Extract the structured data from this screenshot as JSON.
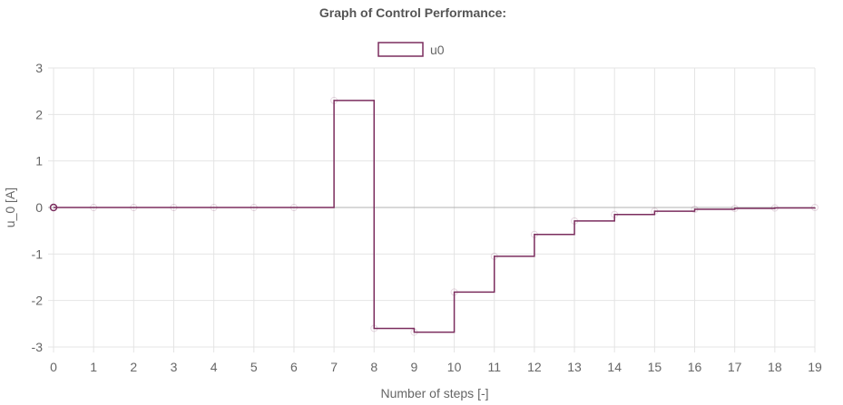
{
  "chart_data": {
    "type": "line",
    "step": true,
    "title": "Graph of Control Performance:",
    "xlabel": "Number of steps [-]",
    "ylabel": "u_0 [A]",
    "xlim": [
      0,
      19
    ],
    "ylim": [
      -3,
      3
    ],
    "x_ticks": [
      "0",
      "1",
      "2",
      "3",
      "4",
      "5",
      "6",
      "7",
      "8",
      "9",
      "10",
      "11",
      "12",
      "13",
      "14",
      "15",
      "16",
      "17",
      "18",
      "19"
    ],
    "y_ticks": [
      "3",
      "2",
      "1",
      "0",
      "-1",
      "-2",
      "-3"
    ],
    "grid": true,
    "legend": "top-center",
    "x": [
      0,
      1,
      2,
      3,
      4,
      5,
      6,
      7,
      8,
      9,
      10,
      11,
      12,
      13,
      14,
      15,
      16,
      17,
      18,
      19
    ],
    "series": [
      {
        "name": "u0",
        "color": "#7b2d5e",
        "values": [
          0,
          0,
          0,
          0,
          0,
          0,
          0,
          2.3,
          -2.6,
          -2.68,
          -1.82,
          -1.05,
          -0.58,
          -0.29,
          -0.15,
          -0.08,
          -0.04,
          -0.02,
          -0.01,
          0
        ]
      }
    ]
  }
}
